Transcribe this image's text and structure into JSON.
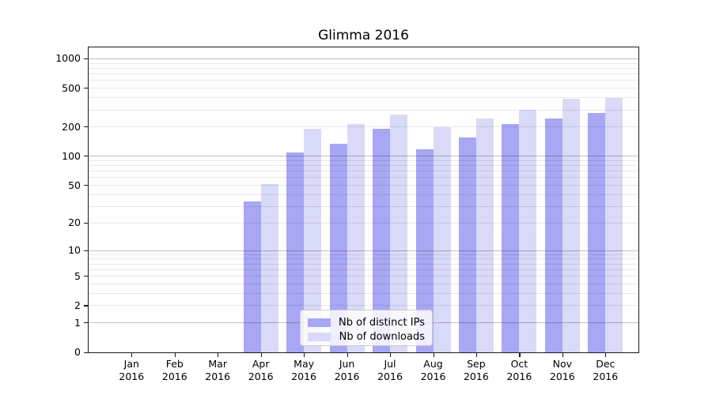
{
  "chart_data": {
    "type": "bar",
    "title": "Glimma 2016",
    "categories": [
      "Jan 2016",
      "Feb 2016",
      "Mar 2016",
      "Apr 2016",
      "May 2016",
      "Jun 2016",
      "Jul 2016",
      "Aug 2016",
      "Sep 2016",
      "Oct 2016",
      "Nov 2016",
      "Dec 2016"
    ],
    "series": [
      {
        "name": "Nb of distinct IPs",
        "color": "#a7a7f4",
        "values": [
          0,
          0,
          0,
          34,
          110,
          135,
          191,
          118,
          157,
          216,
          243,
          280
        ]
      },
      {
        "name": "Nb of downloads",
        "color": "#d9d9f8",
        "values": [
          0,
          0,
          0,
          51,
          192,
          215,
          269,
          198,
          245,
          301,
          390,
          400
        ]
      }
    ],
    "xlabel": "",
    "ylabel": "",
    "yscale": "log1p",
    "ylim": [
      0,
      1280
    ],
    "yticks": [
      0,
      1,
      2,
      5,
      10,
      20,
      50,
      100,
      200,
      500,
      1000
    ],
    "major_gridlines": [
      1,
      10,
      100,
      1000
    ],
    "minor_gridlines": [
      2,
      3,
      4,
      5,
      6,
      7,
      8,
      9,
      20,
      30,
      40,
      50,
      60,
      70,
      80,
      90,
      200,
      300,
      400,
      500,
      600,
      700,
      800,
      900
    ],
    "grid": "horizontal",
    "legend_position": "lower center"
  }
}
